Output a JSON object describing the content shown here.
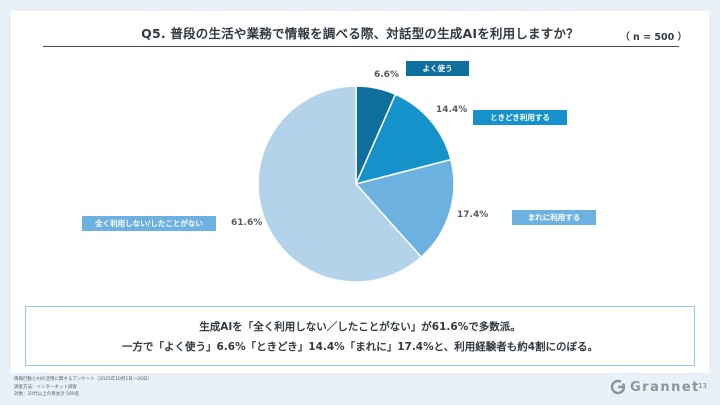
{
  "slide": {
    "title": "Q5. 普段の生活や業務で情報を調べる際、対話型の生成AIを利用しますか？",
    "sample_size": "（ n = 500 ）",
    "page_number": "13"
  },
  "chart_data": {
    "type": "pie",
    "title": "Q5. 普段の生活や業務で情報を調べる際、対話型の生成AIを利用しますか？",
    "slices": [
      {
        "label": "よく使う",
        "value": 6.6,
        "display": "6.6%",
        "color": "#0e6f9c"
      },
      {
        "label": "ときどき利用する",
        "value": 14.4,
        "display": "14.4%",
        "color": "#1592c9"
      },
      {
        "label": "まれに利用する",
        "value": 17.4,
        "display": "17.4%",
        "color": "#6db1e1"
      },
      {
        "label": "全く利用しない/したことがない",
        "value": 61.6,
        "display": "61.6%",
        "color": "#b2d3ea"
      }
    ],
    "start_angle_deg": 0,
    "direction": "clockwise"
  },
  "summary": {
    "line1": "生成AIを「全く利用しない／したことがない」が61.6%で多数派。",
    "line2": "一方で「よく使う」6.6%「ときどき」14.4%「まれに」17.4%と、利用経験者も約4割にのぼる。"
  },
  "footer": {
    "line1": "情報行動とAIの活用に関するアンケート（2025年10月1日〜20日）",
    "line2": "調査方法：インターネット調査",
    "line3": "対象：20代以上の男女計 500名"
  },
  "brand": {
    "name": "Grannet",
    "color": "#8a96a0"
  }
}
